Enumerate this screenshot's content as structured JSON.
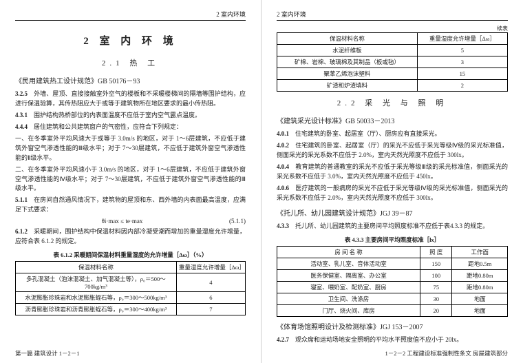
{
  "left": {
    "header": "2 室内环境",
    "chapter": "2 室 内 环 境",
    "section": "2.1 热 工",
    "ref": "《民用建筑热工设计规范》GB 50176－93",
    "p1_num": "3.2.5",
    "p1": "外墙、屋顶、直接接触室外空气的楼板和不采暖楼梯间的隔墙等围护结构，应进行保温验算，其传热阻应大于或等于建筑物所在地区要求的最小传热阻。",
    "p2_num": "4.3.1",
    "p2": "围护结构热桥部位的内表面温度不应低于室内空气露点温度。",
    "p3_num": "4.4.4",
    "p3": "居住建筑和公共建筑窗户的气密性，应符合下列规定：",
    "p3a": "一、在冬季室外平均风速大于或等于 3.0m/s 的地区，对于 1～6层建筑，不应低于建筑外窗空气渗透性能的Ⅲ级水平；对于 7～30层建筑，不应低于建筑外窗空气渗透性能的Ⅱ级水平。",
    "p3b": "二、在冬季室外平均风速小于 3.0m/s 的地区，对于 1～6层建筑，不应低于建筑外窗空气渗透性能的Ⅳ级水平；对于 7～30层建筑，不应低于建筑外窗空气渗透性能的Ⅲ级水平。",
    "p4_num": "5.1.1",
    "p4": "在房间自然通风情况下，建筑物的屋顶和东、西外墙的内表面最高温度，应满足下式要求：",
    "formula": "θi·max ≤ te·max",
    "formula_num": "(5.1.1)",
    "p5_num": "6.1.2",
    "p5": "采暖期间，围护结构中保温材料因内部冷凝受潮而增加的重量湿度允许增量，应符合表 6.1.2 的规定。",
    "table612_caption": "表 6.1.2  采暖期间保温材料重量湿度的允许增量［Δω］（%）",
    "table612": {
      "cols": [
        "保温材料名称",
        "重量湿度允许增量［Δω］"
      ],
      "rows": [
        [
          "多孔混凝土（泡沫混凝土、加气混凝土等），ρ₀＝500～700kg/m³",
          "4"
        ],
        [
          "水泥膨胀珍珠岩和水泥膨胀蛭石等，ρ₀＝300～500kg/m³",
          "6"
        ],
        [
          "沥青膨胀珍珠岩和沥青膨胀蛭石等，ρ₀＝300～400kg/m³",
          "7"
        ]
      ]
    },
    "footer": "第一篇  建筑设计  1－2－1"
  },
  "right": {
    "header": "2 室内环境",
    "continued": "续表",
    "table_cont": {
      "cols": [
        "保温材料名称",
        "重量湿度允许增量［Δω］"
      ],
      "rows": [
        [
          "水泥纤维板",
          "5"
        ],
        [
          "矿棉、岩棉、玻璃棉及其制品（板或毡）",
          "3"
        ],
        [
          "聚苯乙烯泡沫塑料",
          "15"
        ],
        [
          "矿渣和炉渣填料",
          "2"
        ]
      ]
    },
    "section22": "2.2 采 光 与 照 明",
    "ref2": "《建筑采光设计标准》GB 50033－2013",
    "p401_num": "4.0.1",
    "p401": "住宅建筑的卧室、起居室（厅）、厨房应有直接采光。",
    "p402_num": "4.0.2",
    "p402": "住宅建筑的卧室、起居室（厅）的采光不应低于采光等级Ⅳ级的采光标准值，侧面采光的采光系数不应低于 2.0%，室内天然光照度不应低于 300lx。",
    "p404_num": "4.0.4",
    "p404": "教育建筑的普通教室的采光不应低于采光等级Ⅲ级的采光标准值，侧面采光的采光系数不应低于 3.0%，室内天然光照度不应低于 450lx。",
    "p406_num": "4.0.6",
    "p406": "医疗建筑的一般病房的采光不应低于采光等级Ⅳ级的采光标准值，侧面采光的采光系数不应低于 2.0%，室内天然光照度不应低于 300lx。",
    "ref3": "《托儿所、幼儿园建筑设计规范》JGJ 39－87",
    "p433_num": "4.3.3",
    "p433": "托儿所、幼儿园建筑的主要房间平均照度标准不应低于表4.3.3 的规定。",
    "table433_caption": "表 4.3.3  主要房间平均照度标准［lx］",
    "table433": {
      "cols": [
        "房 间 名 称",
        "照 度",
        "工作面"
      ],
      "rows": [
        [
          "活动室、乳儿室、音体活动室",
          "150",
          "距地0.5m"
        ],
        [
          "医务保健室、隔离室、办公室",
          "100",
          "距地0.80m"
        ],
        [
          "寝室、喂奶室、配奶室、厨房",
          "75",
          "距地0.80m"
        ],
        [
          "卫生间、洗涤房",
          "30",
          "地面"
        ],
        [
          "门厅、烧火间、库房",
          "20",
          "地面"
        ]
      ]
    },
    "ref4": "《体育场馆照明设计及检测标准》JGJ 153－2007",
    "p427_num": "4.2.7",
    "p427": "观众席和运动场地安全照明的平均水平照度值不应小于 20lx。",
    "footer": "1－2－2  工程建设标准强制性条文  房屋建筑部分"
  }
}
